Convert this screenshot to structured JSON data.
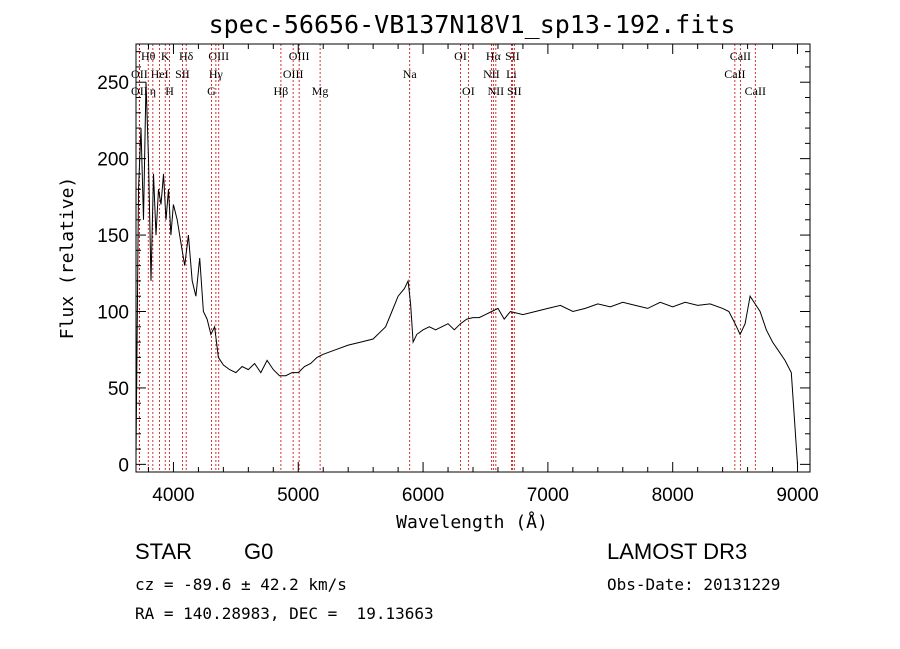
{
  "chart_data": {
    "type": "line",
    "title": "spec-56656-VB137N18V1_sp13-192.fits",
    "xlabel": "Wavelength (Å)",
    "ylabel": "Flux (relative)",
    "xlim": [
      3700,
      9100
    ],
    "ylim": [
      -5,
      275
    ],
    "x_ticks": [
      4000,
      5000,
      6000,
      7000,
      8000,
      9000
    ],
    "y_ticks": [
      0,
      50,
      100,
      150,
      200,
      250
    ],
    "grid": false,
    "line_color": "#000000",
    "marker_color": "#cc0000",
    "series": [
      {
        "x": [
          3700,
          3720,
          3740,
          3760,
          3780,
          3800,
          3820,
          3840,
          3860,
          3880,
          3900,
          3920,
          3940,
          3960,
          3980,
          4000,
          4030,
          4060,
          4090,
          4120,
          4150,
          4180,
          4210,
          4240,
          4270,
          4300,
          4330,
          4360,
          4400,
          4450,
          4500,
          4550,
          4600,
          4650,
          4700,
          4750,
          4800,
          4850,
          4900,
          4950,
          5000,
          5050,
          5100,
          5150,
          5200,
          5300,
          5400,
          5500,
          5600,
          5700,
          5750,
          5800,
          5850,
          5880,
          5900,
          5920,
          5950,
          6000,
          6050,
          6100,
          6150,
          6200,
          6250,
          6300,
          6350,
          6400,
          6450,
          6500,
          6550,
          6600,
          6650,
          6700,
          6800,
          6900,
          7000,
          7100,
          7200,
          7300,
          7400,
          7500,
          7600,
          7700,
          7800,
          7900,
          8000,
          8100,
          8200,
          8300,
          8400,
          8450,
          8500,
          8540,
          8580,
          8620,
          8660,
          8700,
          8750,
          8800,
          8850,
          8900,
          8950,
          9000
        ],
        "y": [
          5,
          180,
          220,
          160,
          250,
          200,
          120,
          190,
          150,
          180,
          170,
          190,
          160,
          180,
          150,
          170,
          160,
          145,
          130,
          150,
          120,
          110,
          135,
          100,
          95,
          85,
          90,
          70,
          65,
          62,
          60,
          64,
          62,
          66,
          60,
          68,
          62,
          58,
          58,
          60,
          60,
          64,
          66,
          70,
          72,
          75,
          78,
          80,
          82,
          90,
          100,
          110,
          115,
          120,
          105,
          80,
          85,
          88,
          90,
          88,
          90,
          92,
          88,
          92,
          95,
          96,
          96,
          98,
          100,
          102,
          95,
          100,
          98,
          100,
          102,
          104,
          100,
          102,
          105,
          103,
          106,
          104,
          102,
          106,
          103,
          106,
          104,
          105,
          102,
          100,
          92,
          85,
          92,
          110,
          105,
          100,
          88,
          80,
          74,
          68,
          60,
          0
        ]
      }
    ],
    "line_markers": [
      {
        "label": "Hθ",
        "x": 3798,
        "row": 0
      },
      {
        "label": "OII",
        "x": 3727,
        "row": 1
      },
      {
        "label": "OII",
        "x": 3727,
        "row": 2
      },
      {
        "label": "K",
        "x": 3934,
        "row": 0
      },
      {
        "label": "H",
        "x": 3969,
        "row": 2
      },
      {
        "label": "HeI",
        "x": 3889,
        "row": 1
      },
      {
        "label": "η",
        "x": 3835,
        "row": 2
      },
      {
        "label": "SII",
        "x": 4072,
        "row": 1
      },
      {
        "label": "Hδ",
        "x": 4102,
        "row": 0
      },
      {
        "label": "OIII",
        "x": 4363,
        "row": 0
      },
      {
        "label": "Hγ",
        "x": 4340,
        "row": 1
      },
      {
        "label": "G",
        "x": 4305,
        "row": 2
      },
      {
        "label": "Hβ",
        "x": 4861,
        "row": 2
      },
      {
        "label": "OIII",
        "x": 5007,
        "row": 0
      },
      {
        "label": "OIII",
        "x": 4959,
        "row": 1
      },
      {
        "label": "Mg",
        "x": 5175,
        "row": 2
      },
      {
        "label": "Na",
        "x": 5893,
        "row": 1
      },
      {
        "label": "OI",
        "x": 6300,
        "row": 0
      },
      {
        "label": "OI",
        "x": 6363,
        "row": 2
      },
      {
        "label": "Hα",
        "x": 6563,
        "row": 0
      },
      {
        "label": "NII",
        "x": 6548,
        "row": 1
      },
      {
        "label": "NII",
        "x": 6583,
        "row": 2
      },
      {
        "label": "SII",
        "x": 6716,
        "row": 0
      },
      {
        "label": "Li",
        "x": 6708,
        "row": 1
      },
      {
        "label": "SII",
        "x": 6731,
        "row": 2
      },
      {
        "label": "CaII",
        "x": 8542,
        "row": 0
      },
      {
        "label": "CaII",
        "x": 8498,
        "row": 1
      },
      {
        "label": "CaII",
        "x": 8662,
        "row": 2
      }
    ]
  },
  "info": {
    "class_label": "STAR",
    "subclass_label": "G0",
    "survey": "LAMOST DR3",
    "cz": "cz = -89.6 ± 42.2 km/s",
    "obs_date": "Obs-Date: 20131229",
    "coords": "RA = 140.28983, DEC =  19.13663"
  }
}
